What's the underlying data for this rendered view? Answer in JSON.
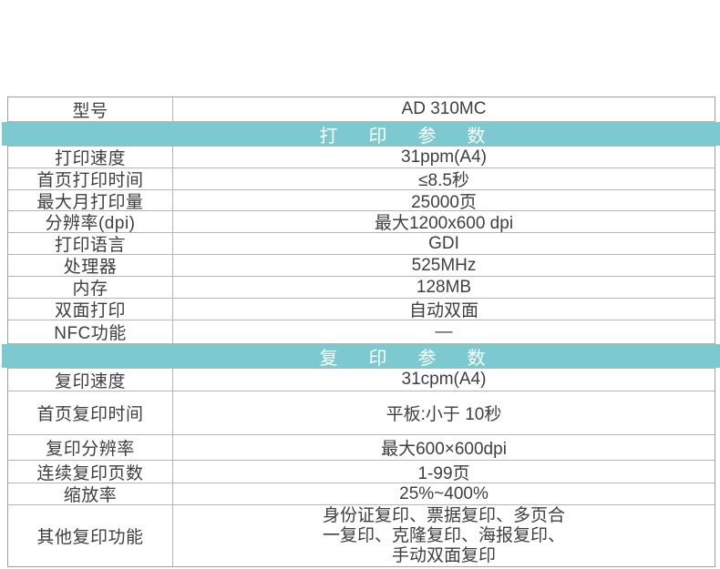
{
  "colors": {
    "band_background": "#7cc9cf",
    "band_text": "#ffffff",
    "table_border": "#b5b5b5",
    "table_outer_border": "#9f9f9f",
    "body_text": "#3f3f3f",
    "page_background": "#ffffff"
  },
  "table": {
    "model": {
      "label": "型号",
      "value": "AD 310MC"
    },
    "print_section": {
      "band_label": "打印参数",
      "rows": [
        {
          "label": "打印速度",
          "value": "31ppm(A4)"
        },
        {
          "label": "首页打印时间",
          "value": "≤8.5秒"
        },
        {
          "label": "最大月打印量",
          "value": "25000页"
        },
        {
          "label": "分辨率(dpi)",
          "value": "最大1200x600 dpi"
        },
        {
          "label": "打印语言",
          "value": "GDI"
        },
        {
          "label": "处理器",
          "value": "525MHz"
        },
        {
          "label": "内存",
          "value": "128MB"
        },
        {
          "label": "双面打印",
          "value": "自动双面"
        },
        {
          "label": "NFC功能",
          "value": "—"
        }
      ]
    },
    "copy_section": {
      "band_label": "复印参数",
      "rows": [
        {
          "label": "复印速度",
          "value": "31cpm(A4)"
        },
        {
          "label": "首页复印时间",
          "value": "平板:小于 10秒"
        },
        {
          "label": "复印分辨率",
          "value": "最大600×600dpi"
        },
        {
          "label": "连续复印页数",
          "value": "1-99页"
        },
        {
          "label": "缩放率",
          "value": "25%~400%"
        },
        {
          "label": "其他复印功能",
          "value_lines": [
            "身份证复印、票据复印、多页合",
            "一复印、克隆复印、海报复印、",
            "手动双面复印"
          ]
        }
      ]
    }
  }
}
